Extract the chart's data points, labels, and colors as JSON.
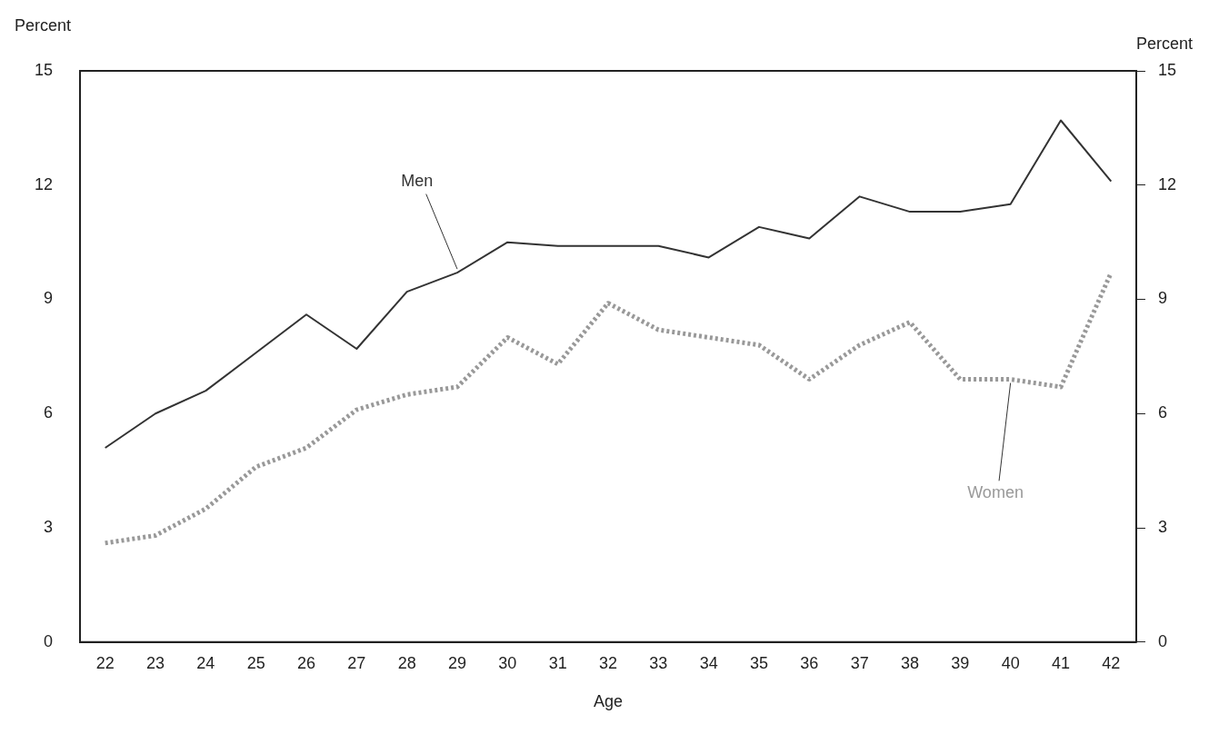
{
  "chart_data": {
    "type": "line",
    "xlabel": "Age",
    "ylabel": "Percent",
    "y2label": "Percent",
    "categories": [
      "22",
      "23",
      "24",
      "25",
      "26",
      "27",
      "28",
      "29",
      "30",
      "31",
      "32",
      "33",
      "34",
      "35",
      "36",
      "37",
      "38",
      "39",
      "40",
      "41",
      "42"
    ],
    "series": [
      {
        "name": "Men",
        "color": "#333333",
        "line_style": "solid",
        "values": [
          5.1,
          6.0,
          6.6,
          7.6,
          8.6,
          7.7,
          9.2,
          9.7,
          10.5,
          10.4,
          10.4,
          10.4,
          10.1,
          10.9,
          10.6,
          11.7,
          11.3,
          11.3,
          11.5,
          13.7,
          12.1
        ]
      },
      {
        "name": "Women",
        "color": "#999999",
        "line_style": "dotted",
        "values": [
          2.6,
          2.8,
          3.5,
          4.6,
          5.1,
          6.1,
          6.5,
          6.7,
          8.0,
          7.3,
          8.9,
          8.2,
          8.0,
          7.8,
          6.9,
          7.8,
          8.4,
          6.9,
          6.9,
          6.7,
          9.7
        ]
      }
    ],
    "ylim": [
      0,
      15
    ],
    "yticks": [
      0,
      3,
      6,
      9,
      12,
      15
    ],
    "y2lim": [
      0,
      15
    ],
    "y2ticks": [
      0,
      3,
      6,
      9,
      12,
      15
    ],
    "grid": false,
    "legend": false,
    "marker": "none"
  }
}
